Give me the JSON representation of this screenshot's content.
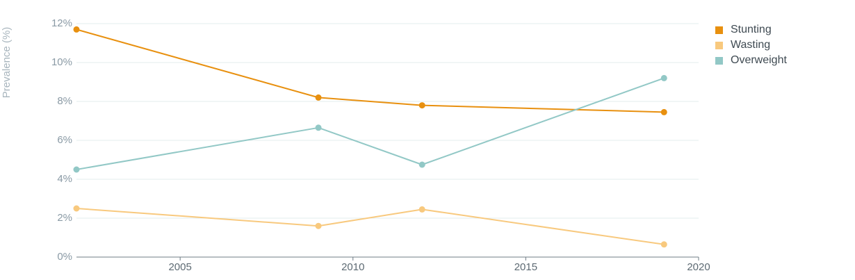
{
  "chart_data": {
    "type": "line",
    "xlabel": "",
    "ylabel": "Prevalence (%)",
    "xlim": [
      2002,
      2020
    ],
    "ylim": [
      0,
      12
    ],
    "x_ticks": [
      "2005",
      "2010",
      "2015",
      "2020"
    ],
    "y_ticks": [
      "0%",
      "2%",
      "4%",
      "6%",
      "8%",
      "10%",
      "12%"
    ],
    "grid": "horizontal",
    "legend_position": "right",
    "series": [
      {
        "name": "Stunting",
        "color": "#e8900f",
        "x": [
          2002,
          2009,
          2012,
          2019
        ],
        "values": [
          11.7,
          8.2,
          7.8,
          7.45
        ]
      },
      {
        "name": "Wasting",
        "color": "#f8c97e",
        "x": [
          2002,
          2009,
          2012,
          2019
        ],
        "values": [
          2.5,
          1.6,
          2.45,
          0.65
        ]
      },
      {
        "name": "Overweight",
        "color": "#92c8c6",
        "x": [
          2002,
          2009,
          2012,
          2019
        ],
        "values": [
          4.5,
          6.65,
          4.75,
          9.2
        ]
      }
    ]
  }
}
